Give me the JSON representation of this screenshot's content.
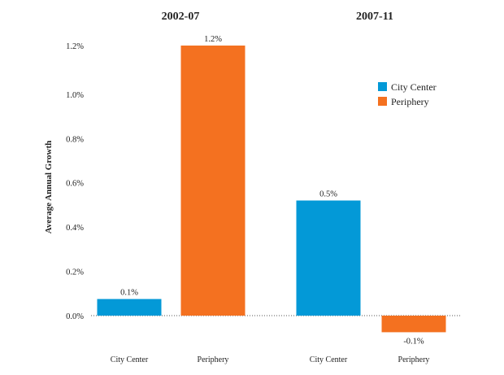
{
  "chart_data": {
    "type": "bar",
    "title": "",
    "ylabel": "Average Annual Growth",
    "xlabel": "",
    "ylim": [
      0,
      1.2
    ],
    "y_ticks": [
      "0.0%",
      "0.2%",
      "0.4%",
      "0.6%",
      "0.8%",
      "1.0%",
      "1.2%"
    ],
    "y_tick_values": [
      0,
      0.2,
      0.4,
      0.6,
      0.8,
      1.0,
      1.2
    ],
    "baseline_style": "dotted",
    "grid": false,
    "legend_position": "top-right",
    "series_colors": {
      "City Center": "#0399d7",
      "Periphery": "#f47120"
    },
    "panels": [
      {
        "title": "2002-07",
        "categories": [
          "City Center",
          "Periphery"
        ],
        "values": [
          0.075,
          1.22
        ],
        "data_labels": [
          "0.1%",
          "1.2%"
        ]
      },
      {
        "title": "2007-11",
        "categories": [
          "City Center",
          "Periphery"
        ],
        "values": [
          0.52,
          -0.075
        ],
        "data_labels": [
          "0.5%",
          "-0.1%"
        ]
      }
    ],
    "legend": [
      {
        "label": "City Center",
        "color": "#0399d7"
      },
      {
        "label": "Periphery",
        "color": "#f47120"
      }
    ]
  }
}
